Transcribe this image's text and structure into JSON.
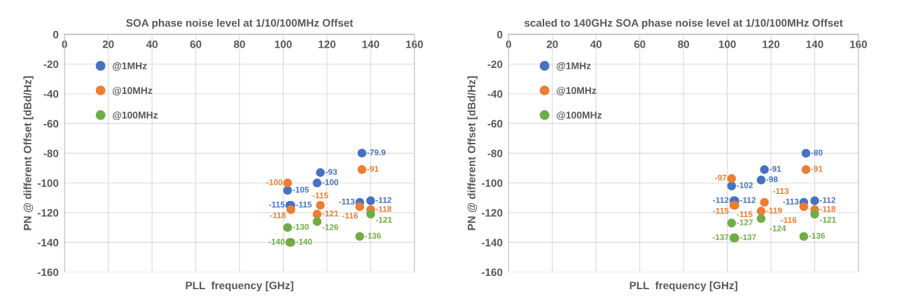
{
  "chart_data": [
    {
      "type": "scatter",
      "title": "SOA phase noise level at 1/10/100MHz Offset",
      "xlabel": "PLL  frequency [GHz]",
      "ylabel": "PN @ different Offset [dBd/Hz]",
      "xlim": [
        0,
        160
      ],
      "xticks": [
        0,
        20,
        40,
        60,
        80,
        100,
        120,
        140,
        160
      ],
      "ylim": [
        -160,
        0
      ],
      "yticks": [
        -160,
        -140,
        -120,
        -100,
        -80,
        -60,
        -40,
        -20,
        0
      ],
      "grid": true,
      "legend": "top left",
      "marker": "circle",
      "data_labels": true,
      "series": [
        {
          "name": "@1MHz",
          "color": "#4472c4",
          "x": [
            102,
            103,
            103.5,
            115.5,
            117,
            135,
            136,
            140
          ],
          "values": [
            -105,
            -115,
            -115,
            -100,
            -93,
            -113,
            -79.9,
            -112
          ]
        },
        {
          "name": "@10MHz",
          "color": "#ed7d31",
          "x": [
            102,
            103.5,
            115.5,
            117,
            135,
            136,
            140
          ],
          "values": [
            -100,
            -118,
            -121,
            -115,
            -116,
            -91,
            -118
          ]
        },
        {
          "name": "@100MHz",
          "color": "#70ad47",
          "x": [
            102,
            103,
            103.5,
            115.5,
            135,
            140
          ],
          "values": [
            -130,
            -140,
            -140,
            -126,
            -136,
            -121
          ]
        }
      ]
    },
    {
      "type": "scatter",
      "title": "scaled to 140GHz SOA phase noise level at 1/10/100MHz Offset",
      "xlabel": "PLL  frequency [GHz]",
      "ylabel": "PN @ different Offset [dBd/Hz]",
      "xlim": [
        0,
        160
      ],
      "xticks": [
        0,
        20,
        40,
        60,
        80,
        100,
        120,
        140,
        160
      ],
      "ylim": [
        -160,
        0
      ],
      "yticks": [
        -160,
        -140,
        -120,
        -100,
        -80,
        -60,
        -40,
        -20,
        0
      ],
      "grid": true,
      "legend": "top left",
      "marker": "circle",
      "data_labels": true,
      "series": [
        {
          "name": "@1MHz",
          "color": "#4472c4",
          "x": [
            102,
            103,
            103.5,
            115.5,
            117,
            135,
            136,
            140
          ],
          "values": [
            -102,
            -112,
            -112,
            -98,
            -91,
            -113,
            -80,
            -112
          ]
        },
        {
          "name": "@10MHz",
          "color": "#ed7d31",
          "x": [
            102,
            103,
            103.5,
            115.5,
            117,
            135,
            136,
            140
          ],
          "values": [
            -97,
            -115,
            -115,
            -119,
            -113,
            -116,
            -91,
            -118
          ]
        },
        {
          "name": "@100MHz",
          "color": "#70ad47",
          "x": [
            102,
            103,
            103.5,
            115.5,
            135,
            140
          ],
          "values": [
            -127,
            -137,
            -137,
            -124,
            -136,
            -121
          ]
        }
      ]
    }
  ]
}
